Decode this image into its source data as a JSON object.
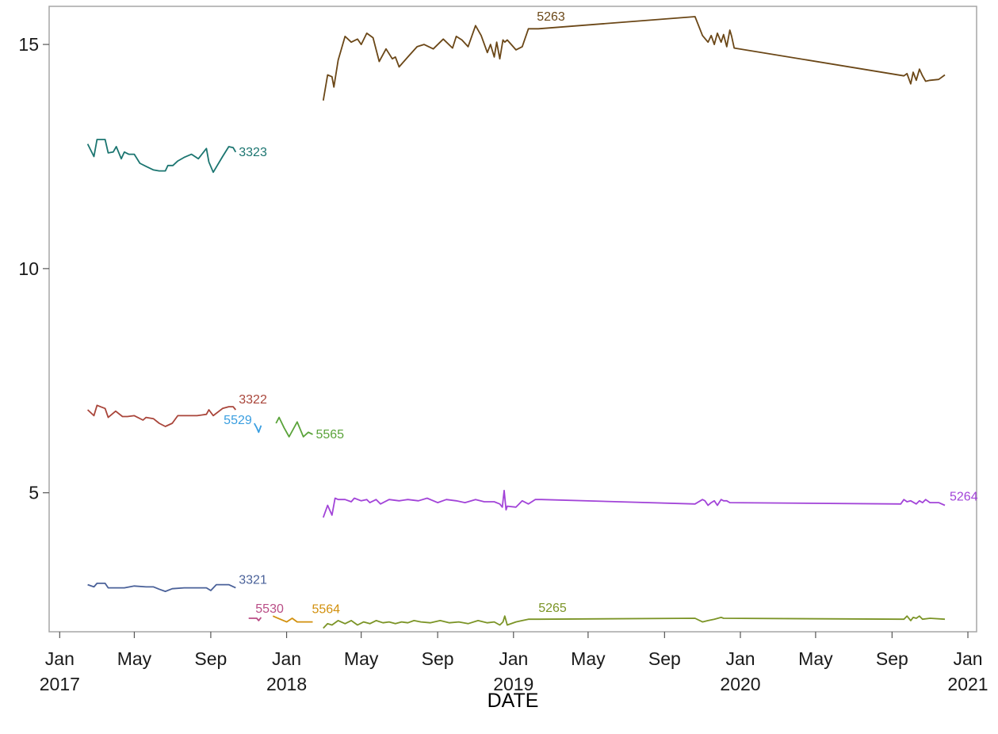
{
  "chart_data": {
    "type": "line",
    "title": "",
    "xlabel": "DATE",
    "ylabel": "",
    "xlim": [
      "2016-12-15",
      "2021-01-15"
    ],
    "ylim": [
      1.9,
      15.85
    ],
    "grid": false,
    "legend": "none",
    "x_ticks": [
      {
        "date": "2017-01-01",
        "label": "Jan",
        "year": "2017"
      },
      {
        "date": "2017-05-01",
        "label": "May",
        "year": ""
      },
      {
        "date": "2017-09-01",
        "label": "Sep",
        "year": ""
      },
      {
        "date": "2018-01-01",
        "label": "Jan",
        "year": "2018"
      },
      {
        "date": "2018-05-01",
        "label": "May",
        "year": ""
      },
      {
        "date": "2018-09-01",
        "label": "Sep",
        "year": ""
      },
      {
        "date": "2019-01-01",
        "label": "Jan",
        "year": "2019"
      },
      {
        "date": "2019-05-01",
        "label": "May",
        "year": ""
      },
      {
        "date": "2019-09-01",
        "label": "Sep",
        "year": ""
      },
      {
        "date": "2020-01-01",
        "label": "Jan",
        "year": "2020"
      },
      {
        "date": "2020-05-01",
        "label": "May",
        "year": ""
      },
      {
        "date": "2020-09-01",
        "label": "Sep",
        "year": ""
      },
      {
        "date": "2021-01-01",
        "label": "Jan",
        "year": "2021"
      }
    ],
    "y_ticks": [
      5,
      10,
      15
    ],
    "y_tick_labels": [
      "5",
      "10",
      "15"
    ],
    "series": [
      {
        "name": "3323",
        "color": "#1b7570",
        "x": [
          "2017-02-15",
          "2017-02-25",
          "2017-03-02",
          "2017-03-15",
          "2017-03-20",
          "2017-03-28",
          "2017-04-02",
          "2017-04-10",
          "2017-04-15",
          "2017-04-22",
          "2017-05-01",
          "2017-05-10",
          "2017-05-20",
          "2017-06-01",
          "2017-06-10",
          "2017-06-20",
          "2017-06-24",
          "2017-07-02",
          "2017-07-10",
          "2017-07-20",
          "2017-08-01",
          "2017-08-12",
          "2017-08-25",
          "2017-08-29",
          "2017-09-05",
          "2017-09-20",
          "2017-09-30",
          "2017-10-07",
          "2017-10-11"
        ],
        "y": [
          12.78,
          12.5,
          12.88,
          12.88,
          12.58,
          12.6,
          12.72,
          12.45,
          12.6,
          12.55,
          12.55,
          12.35,
          12.28,
          12.2,
          12.18,
          12.18,
          12.3,
          12.3,
          12.4,
          12.48,
          12.55,
          12.45,
          12.68,
          12.38,
          12.15,
          12.5,
          12.72,
          12.7,
          12.6
        ]
      },
      {
        "name": "3322",
        "color": "#a9453a",
        "x": [
          "2017-02-15",
          "2017-02-25",
          "2017-03-02",
          "2017-03-15",
          "2017-03-20",
          "2017-04-01",
          "2017-04-12",
          "2017-04-20",
          "2017-05-01",
          "2017-05-15",
          "2017-05-20",
          "2017-06-01",
          "2017-06-10",
          "2017-06-20",
          "2017-07-01",
          "2017-07-10",
          "2017-07-20",
          "2017-08-01",
          "2017-08-10",
          "2017-08-25",
          "2017-08-29",
          "2017-09-05",
          "2017-09-20",
          "2017-09-30",
          "2017-10-07",
          "2017-10-11"
        ],
        "y": [
          6.85,
          6.72,
          6.95,
          6.88,
          6.68,
          6.82,
          6.7,
          6.7,
          6.72,
          6.62,
          6.68,
          6.65,
          6.55,
          6.48,
          6.55,
          6.72,
          6.72,
          6.72,
          6.72,
          6.75,
          6.85,
          6.72,
          6.88,
          6.92,
          6.92,
          6.85
        ]
      },
      {
        "name": "3321",
        "color": "#4a6199",
        "x": [
          "2017-02-15",
          "2017-02-25",
          "2017-03-02",
          "2017-03-15",
          "2017-03-20",
          "2017-04-15",
          "2017-05-01",
          "2017-05-20",
          "2017-06-01",
          "2017-06-10",
          "2017-06-20",
          "2017-07-01",
          "2017-07-20",
          "2017-08-10",
          "2017-08-25",
          "2017-09-01",
          "2017-09-10",
          "2017-09-30",
          "2017-10-11"
        ],
        "y": [
          2.95,
          2.9,
          2.98,
          2.98,
          2.88,
          2.88,
          2.92,
          2.9,
          2.9,
          2.85,
          2.8,
          2.86,
          2.88,
          2.88,
          2.88,
          2.82,
          2.95,
          2.95,
          2.88
        ]
      },
      {
        "name": "5529",
        "color": "#3a9ee0",
        "x": [
          "2017-11-10",
          "2017-11-14",
          "2017-11-17",
          "2017-11-21"
        ],
        "y": [
          6.55,
          6.45,
          6.35,
          6.5
        ]
      },
      {
        "name": "5565",
        "color": "#5aa33a",
        "x": [
          "2017-12-15",
          "2017-12-20",
          "2017-12-28",
          "2018-01-05",
          "2018-01-18",
          "2018-01-28",
          "2018-02-05",
          "2018-02-12"
        ],
        "y": [
          6.55,
          6.68,
          6.45,
          6.25,
          6.58,
          6.25,
          6.35,
          6.3
        ]
      },
      {
        "name": "5530",
        "color": "#b94d86",
        "x": [
          "2017-11-01",
          "2017-11-14",
          "2017-11-17",
          "2017-11-21"
        ],
        "y": [
          2.2,
          2.2,
          2.15,
          2.22
        ]
      },
      {
        "name": "5564",
        "color": "#d2900d",
        "x": [
          "2017-12-10",
          "2017-12-15",
          "2018-01-01",
          "2018-01-10",
          "2018-01-18",
          "2018-01-28",
          "2018-02-12"
        ],
        "y": [
          2.25,
          2.22,
          2.12,
          2.2,
          2.12,
          2.12,
          2.12
        ]
      },
      {
        "name": "5263",
        "color": "#6b4717",
        "x": [
          "2018-03-01",
          "2018-03-08",
          "2018-03-15",
          "2018-03-18",
          "2018-03-25",
          "2018-04-05",
          "2018-04-15",
          "2018-04-25",
          "2018-05-01",
          "2018-05-10",
          "2018-05-20",
          "2018-05-30",
          "2018-06-10",
          "2018-06-20",
          "2018-06-25",
          "2018-07-01",
          "2018-07-15",
          "2018-07-30",
          "2018-08-10",
          "2018-08-25",
          "2018-09-10",
          "2018-09-25",
          "2018-10-01",
          "2018-10-10",
          "2018-10-20",
          "2018-11-01",
          "2018-11-10",
          "2018-11-20",
          "2018-11-25",
          "2018-12-01",
          "2018-12-05",
          "2018-12-10",
          "2018-12-15",
          "2018-12-18",
          "2018-12-22",
          "2019-01-05",
          "2019-01-15",
          "2019-01-25",
          "2019-02-05",
          "2019-02-10",
          "2019-10-20",
          "2019-11-01",
          "2019-11-10",
          "2019-11-15",
          "2019-11-20",
          "2019-11-25",
          "2019-12-01",
          "2019-12-05",
          "2019-12-10",
          "2019-12-15",
          "2019-12-18",
          "2019-12-22",
          "2020-09-20",
          "2020-09-25",
          "2020-10-01",
          "2020-10-05",
          "2020-10-10",
          "2020-10-15",
          "2020-10-20",
          "2020-10-25",
          "2020-11-01",
          "2020-11-15",
          "2020-11-25"
        ],
        "y": [
          13.75,
          14.32,
          14.28,
          14.05,
          14.65,
          15.18,
          15.05,
          15.12,
          15.0,
          15.25,
          15.15,
          14.62,
          14.9,
          14.68,
          14.72,
          14.5,
          14.72,
          14.95,
          15.0,
          14.9,
          15.12,
          14.92,
          15.18,
          15.1,
          14.95,
          15.42,
          15.2,
          14.82,
          15.0,
          14.72,
          15.05,
          14.68,
          15.1,
          15.05,
          15.1,
          14.88,
          14.95,
          15.35,
          15.35,
          15.35,
          15.62,
          15.2,
          15.05,
          15.2,
          15.0,
          15.25,
          15.05,
          15.22,
          14.95,
          15.32,
          15.18,
          14.92,
          14.3,
          14.35,
          14.12,
          14.38,
          14.2,
          14.45,
          14.3,
          14.18,
          14.2,
          14.22,
          14.32
        ]
      },
      {
        "name": "5264",
        "color": "#a244d8",
        "x": [
          "2018-03-01",
          "2018-03-08",
          "2018-03-15",
          "2018-03-20",
          "2018-03-25",
          "2018-04-05",
          "2018-04-15",
          "2018-04-20",
          "2018-05-01",
          "2018-05-10",
          "2018-05-15",
          "2018-05-25",
          "2018-06-01",
          "2018-06-15",
          "2018-07-01",
          "2018-07-15",
          "2018-08-01",
          "2018-08-15",
          "2018-09-01",
          "2018-09-15",
          "2018-10-01",
          "2018-10-15",
          "2018-11-01",
          "2018-11-15",
          "2018-12-01",
          "2018-12-10",
          "2018-12-14",
          "2018-12-17",
          "2018-12-20",
          "2018-12-22",
          "2019-01-05",
          "2019-01-15",
          "2019-01-25",
          "2019-02-05",
          "2019-02-15",
          "2019-10-20",
          "2019-11-01",
          "2019-11-05",
          "2019-11-10",
          "2019-11-15",
          "2019-11-20",
          "2019-11-25",
          "2019-12-01",
          "2019-12-05",
          "2019-12-10",
          "2019-12-15",
          "2020-09-15",
          "2020-09-20",
          "2020-09-25",
          "2020-10-01",
          "2020-10-10",
          "2020-10-15",
          "2020-10-20",
          "2020-10-25",
          "2020-11-01",
          "2020-11-15",
          "2020-11-25"
        ],
        "y": [
          4.45,
          4.72,
          4.5,
          4.88,
          4.85,
          4.85,
          4.8,
          4.88,
          4.82,
          4.85,
          4.78,
          4.85,
          4.75,
          4.85,
          4.82,
          4.85,
          4.82,
          4.88,
          4.78,
          4.85,
          4.82,
          4.78,
          4.85,
          4.8,
          4.8,
          4.75,
          4.68,
          5.05,
          4.62,
          4.7,
          4.68,
          4.82,
          4.75,
          4.85,
          4.85,
          4.75,
          4.85,
          4.82,
          4.72,
          4.78,
          4.82,
          4.72,
          4.85,
          4.82,
          4.82,
          4.78,
          4.75,
          4.85,
          4.8,
          4.82,
          4.75,
          4.82,
          4.78,
          4.85,
          4.78,
          4.78,
          4.72
        ]
      },
      {
        "name": "5265",
        "color": "#7b9426",
        "x": [
          "2018-03-01",
          "2018-03-08",
          "2018-03-15",
          "2018-03-25",
          "2018-04-05",
          "2018-04-15",
          "2018-04-25",
          "2018-05-05",
          "2018-05-15",
          "2018-05-25",
          "2018-06-05",
          "2018-06-15",
          "2018-06-25",
          "2018-07-05",
          "2018-07-15",
          "2018-07-25",
          "2018-08-05",
          "2018-08-20",
          "2018-09-05",
          "2018-09-20",
          "2018-10-05",
          "2018-10-20",
          "2018-11-05",
          "2018-11-20",
          "2018-12-01",
          "2018-12-10",
          "2018-12-15",
          "2018-12-18",
          "2018-12-22",
          "2019-01-05",
          "2019-01-15",
          "2019-01-25",
          "2019-02-10",
          "2019-10-20",
          "2019-11-01",
          "2019-11-10",
          "2019-11-20",
          "2019-12-01",
          "2019-12-05",
          "2020-09-20",
          "2020-09-25",
          "2020-10-01",
          "2020-10-05",
          "2020-10-10",
          "2020-10-15",
          "2020-10-20",
          "2020-11-01",
          "2020-11-25"
        ],
        "y": [
          1.98,
          2.08,
          2.05,
          2.15,
          2.08,
          2.15,
          2.05,
          2.12,
          2.08,
          2.15,
          2.1,
          2.12,
          2.08,
          2.12,
          2.1,
          2.15,
          2.12,
          2.1,
          2.15,
          2.1,
          2.12,
          2.08,
          2.15,
          2.1,
          2.12,
          2.05,
          2.12,
          2.25,
          2.05,
          2.12,
          2.15,
          2.18,
          2.18,
          2.2,
          2.12,
          2.15,
          2.18,
          2.22,
          2.2,
          2.18,
          2.25,
          2.15,
          2.22,
          2.2,
          2.25,
          2.18,
          2.2,
          2.18
        ]
      }
    ],
    "annotations": [
      {
        "series": "3323",
        "text": "3323"
      },
      {
        "series": "3322",
        "text": "3322"
      },
      {
        "series": "3321",
        "text": "3321"
      },
      {
        "series": "5529",
        "text": "5529"
      },
      {
        "series": "5565",
        "text": "5565"
      },
      {
        "series": "5530",
        "text": "5530"
      },
      {
        "series": "5564",
        "text": "5564"
      },
      {
        "series": "5263",
        "text": "5263"
      },
      {
        "series": "5264",
        "text": "5264"
      },
      {
        "series": "5265",
        "text": "5265"
      }
    ]
  }
}
